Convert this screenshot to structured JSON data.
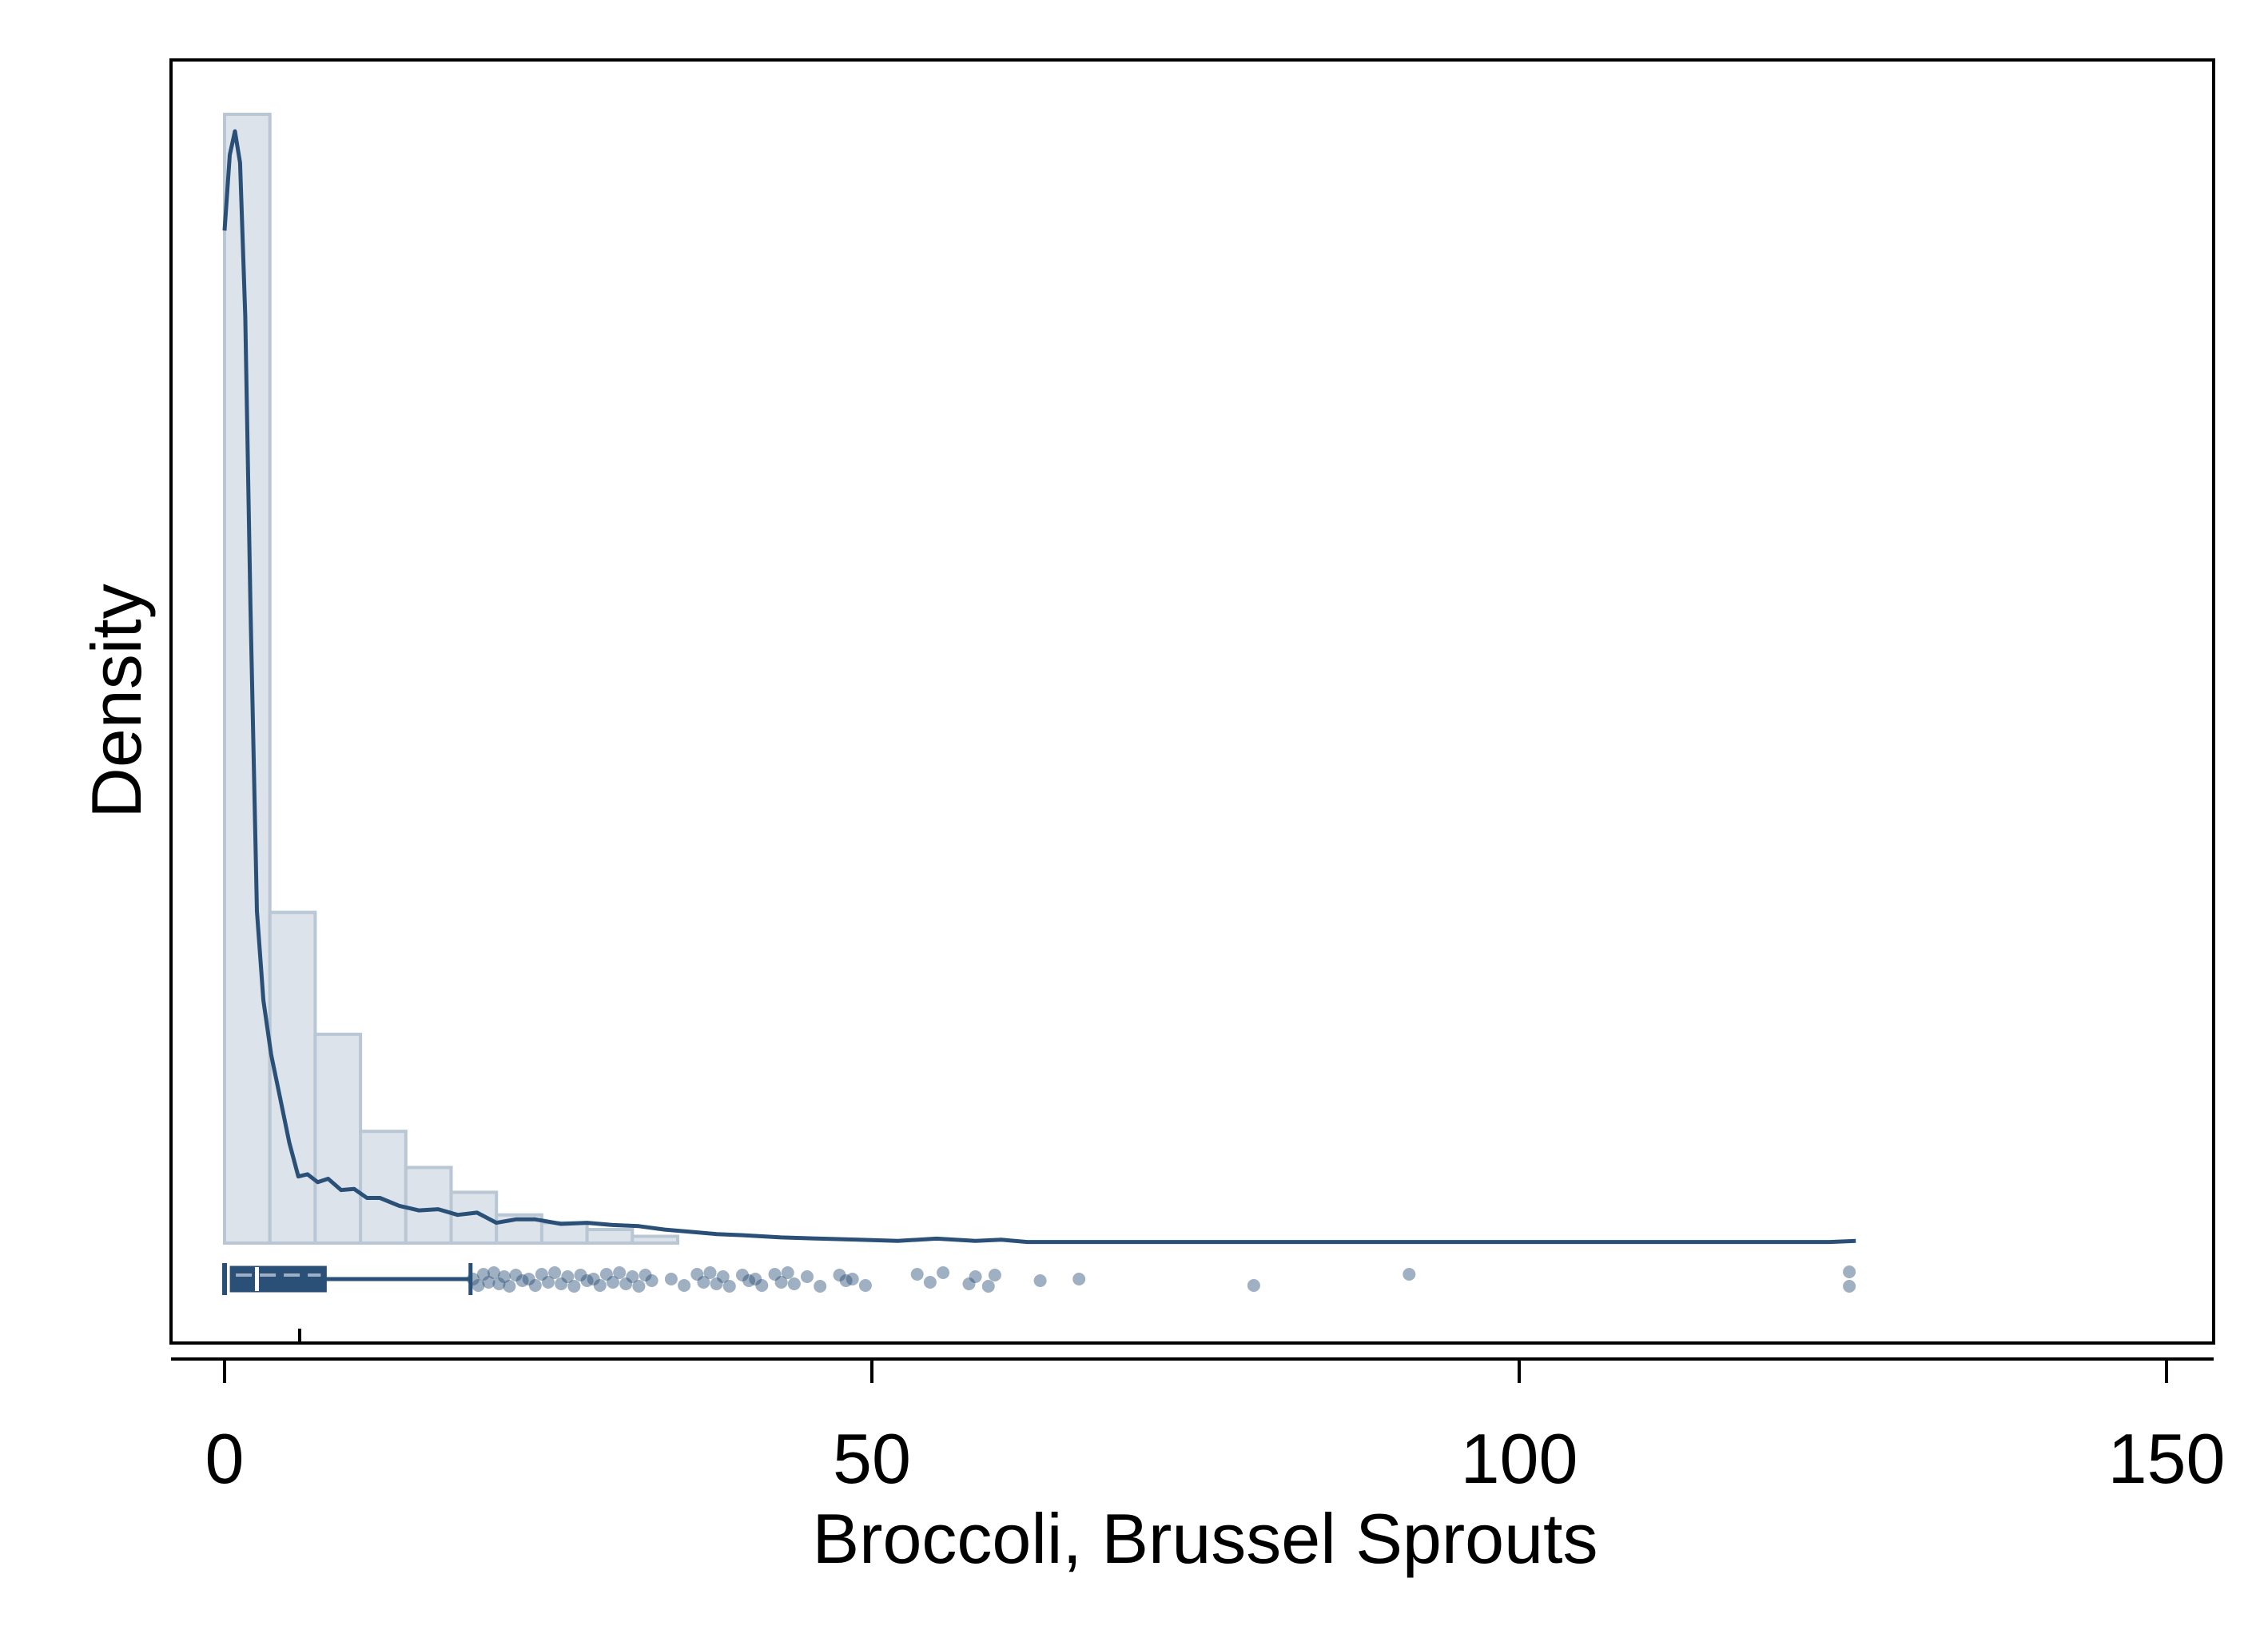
{
  "chart_data": {
    "type": "histogram",
    "title": "",
    "xlabel": "Broccoli, Brussel Sprouts",
    "ylabel": "Density",
    "xlim": [
      -4,
      154
    ],
    "ylim": [
      0,
      1
    ],
    "x_ticks": [
      0,
      50,
      100,
      150
    ],
    "x_tick_labels": [
      "0",
      "50",
      "100",
      "150"
    ],
    "y_ticks_shown": false,
    "grid": false,
    "legend": "none",
    "bin_width": 3.5,
    "bins": [
      {
        "x0": 0.0,
        "x1": 3.5,
        "height": 1.0
      },
      {
        "x0": 3.5,
        "x1": 7.0,
        "height": 0.293
      },
      {
        "x0": 7.0,
        "x1": 10.5,
        "height": 0.185
      },
      {
        "x0": 10.5,
        "x1": 14.0,
        "height": 0.099
      },
      {
        "x0": 14.0,
        "x1": 17.5,
        "height": 0.067
      },
      {
        "x0": 17.5,
        "x1": 21.0,
        "height": 0.045
      },
      {
        "x0": 21.0,
        "x1": 24.5,
        "height": 0.025
      },
      {
        "x0": 24.5,
        "x1": 28.0,
        "height": 0.018
      },
      {
        "x0": 28.0,
        "x1": 31.5,
        "height": 0.012
      },
      {
        "x0": 31.5,
        "x1": 35.0,
        "height": 0.006
      }
    ],
    "kde": {
      "x": [
        0,
        0.4,
        0.8,
        1.2,
        1.6,
        2.0,
        2.5,
        3.0,
        3.6,
        4.3,
        5.0,
        5.7,
        6.4,
        7.2,
        8.0,
        9.0,
        10.0,
        11.0,
        12.0,
        13.5,
        15.0,
        16.5,
        18.0,
        19.5,
        21.0,
        22.5,
        24.0,
        26.0,
        28.0,
        30.0,
        32.0,
        34.0,
        36.0,
        38.0,
        40.0,
        43.0,
        46.0,
        49.0,
        52.0,
        55.0,
        58.0,
        60.0,
        62.0,
        66.0,
        70.0,
        80.0,
        90.0,
        100.0,
        110.0,
        115.0,
        120.0,
        124.0,
        126.0
      ],
      "y": [
        0.897,
        0.964,
        0.985,
        0.957,
        0.821,
        0.564,
        0.294,
        0.215,
        0.167,
        0.128,
        0.089,
        0.059,
        0.061,
        0.054,
        0.057,
        0.047,
        0.048,
        0.04,
        0.04,
        0.033,
        0.029,
        0.03,
        0.025,
        0.027,
        0.018,
        0.021,
        0.021,
        0.017,
        0.018,
        0.016,
        0.015,
        0.012,
        0.01,
        0.008,
        0.007,
        0.005,
        0.004,
        0.003,
        0.002,
        0.004,
        0.002,
        0.003,
        0.001,
        0.001,
        0.001,
        0.001,
        0.001,
        0.001,
        0.001,
        0.001,
        0.001,
        0.001,
        0.002
      ]
    },
    "boxplot": {
      "min": 0,
      "q1": 0.5,
      "median": 2.5,
      "mean": 5.8,
      "q3": 7.8,
      "whisker_high": 19
    },
    "outliers": [
      19.2,
      19.6,
      20.0,
      20.4,
      20.8,
      21.2,
      21.6,
      22.0,
      22.5,
      23.0,
      23.5,
      24.0,
      24.5,
      25.0,
      25.5,
      26.0,
      26.5,
      27.0,
      27.5,
      28.0,
      28.5,
      29.0,
      29.5,
      30.0,
      30.5,
      31.0,
      31.5,
      32.0,
      32.5,
      33.0,
      34.5,
      35.5,
      36.5,
      37.0,
      37.5,
      38.0,
      38.5,
      39.0,
      40.0,
      40.5,
      41.0,
      41.5,
      42.5,
      43.0,
      43.5,
      44.0,
      45.0,
      46.0,
      47.5,
      48.0,
      48.5,
      49.5,
      53.5,
      54.5,
      55.5,
      57.5,
      58.0,
      59.0,
      59.5,
      63.0,
      66.0,
      79.5,
      91.5,
      125.5,
      125.5
    ],
    "colors": {
      "bar_fill": "#dce3ea",
      "bar_edge": "#b9c6d3",
      "line": "#2a5078",
      "point": "#2a5078"
    }
  }
}
